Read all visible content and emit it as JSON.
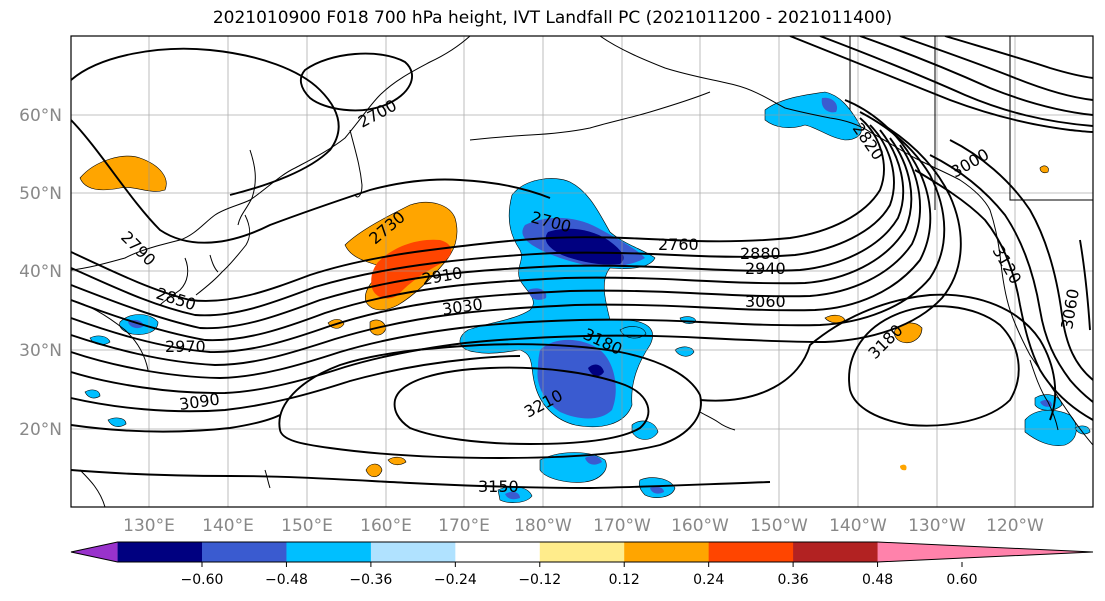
{
  "title": "2021010900 F018 700 hPa height, IVT Landfall PC (2021011200 - 2021011400)",
  "lat_labels": [
    "60°N",
    "50°N",
    "40°N",
    "30°N",
    "20°N"
  ],
  "lon_labels": [
    "130°E",
    "140°E",
    "150°E",
    "160°E",
    "170°E",
    "180°W",
    "170°W",
    "160°W",
    "150°W",
    "140°W",
    "130°W",
    "120°W"
  ],
  "colorbar": {
    "ticks": [
      "−0.60",
      "−0.48",
      "−0.36",
      "−0.24",
      "−0.12",
      "0.12",
      "0.24",
      "0.36",
      "0.48",
      "0.60"
    ],
    "colors": [
      "#9932cc",
      "#000080",
      "#3a5bd0",
      "#00bfff",
      "#b0e2ff",
      "#ffffff",
      "#ffec8b",
      "#ffa500",
      "#ff4500",
      "#b22222",
      "#ff82ab"
    ]
  },
  "contour_labels": [
    "2700",
    "2790",
    "2730",
    "2850",
    "2910",
    "2970",
    "3030",
    "3090",
    "2700",
    "2760",
    "2880",
    "2940",
    "3060",
    "3180",
    "3210",
    "3150",
    "2820",
    "3000",
    "3120",
    "3180",
    "3060"
  ],
  "colors": {
    "pos1": "#ffa500",
    "pos2": "#ff4500",
    "neg1": "#00bfff",
    "neg2": "#3a5bd0",
    "neg3": "#000080"
  }
}
